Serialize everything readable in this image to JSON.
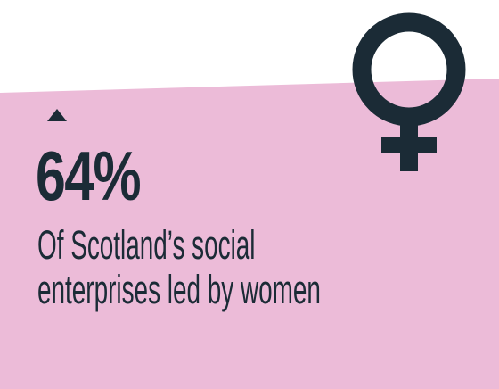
{
  "colors": {
    "background": "#ffffff",
    "panel": "#ecbbd8",
    "ink": "#1b2b36"
  },
  "icons": {
    "trend": "up-arrow-icon",
    "symbol": "female-symbol-icon"
  },
  "stat": {
    "value": "64%",
    "caption_line_1": "Of Scotland’s social",
    "caption_line_2": "enterprises led by women"
  }
}
